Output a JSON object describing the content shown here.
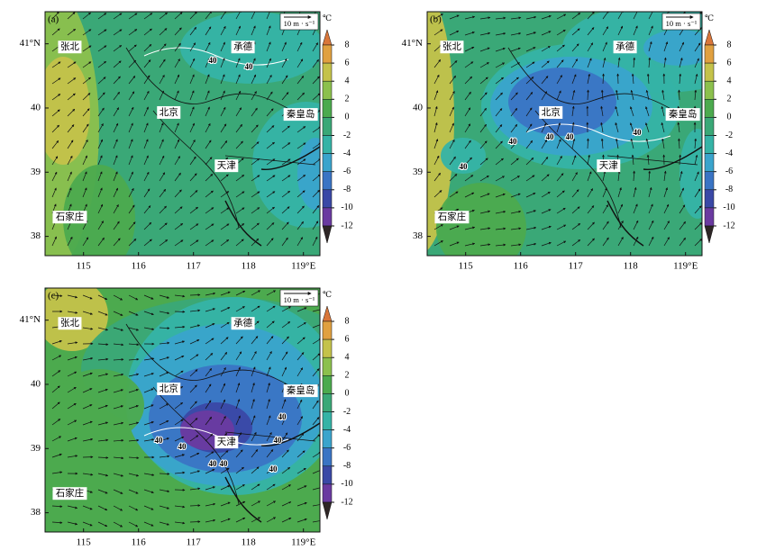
{
  "panels": [
    {
      "label": "(a)",
      "vector_key": "10 m · s⁻¹",
      "places": [
        "张北",
        "承德",
        "北京",
        "秦皇岛",
        "天津",
        "石家庄"
      ],
      "contour_labels": [
        "40",
        "40"
      ]
    },
    {
      "label": "(b)",
      "vector_key": "10 m · s⁻¹",
      "places": [
        "张北",
        "承德",
        "北京",
        "秦皇岛",
        "天津",
        "石家庄"
      ],
      "contour_labels": [
        "40",
        "40",
        "40",
        "40",
        "40"
      ]
    },
    {
      "label": "(c)",
      "vector_key": "10 m · s⁻¹",
      "places": [
        "张北",
        "承德",
        "北京",
        "秦皇岛",
        "天津",
        "石家庄"
      ],
      "contour_labels": [
        "40",
        "40",
        "40",
        "40",
        "40",
        "40",
        "40"
      ]
    }
  ],
  "axes": {
    "xlim": [
      114.3,
      119.3
    ],
    "ylim": [
      37.7,
      41.5
    ],
    "xticks": [
      115,
      116,
      117,
      118,
      {
        "value": 119,
        "label": "119°E"
      }
    ],
    "yticks": [
      {
        "value": 41,
        "label": "41°N"
      },
      40,
      39,
      38
    ]
  },
  "colorbar": {
    "unit": "℃",
    "ticks": [
      8,
      6,
      4,
      2,
      0,
      -2,
      -4,
      -6,
      -8,
      -10,
      -12
    ],
    "colors": [
      "#d9763a",
      "#e0a040",
      "#c4c24a",
      "#8cc04d",
      "#4caa4e",
      "#3aa877",
      "#35b3a6",
      "#3aa4cc",
      "#3a74c4",
      "#3a48a6",
      "#6a3aa0",
      "#2e2626"
    ]
  }
}
